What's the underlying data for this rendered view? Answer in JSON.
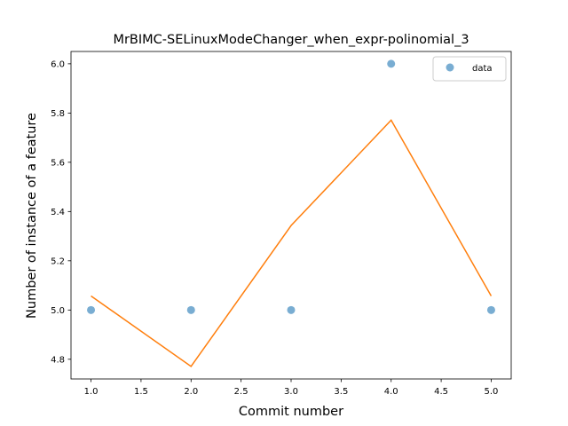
{
  "chart_data": {
    "type": "scatter",
    "title": "MrBIMC-SELinuxModeChanger_when_expr-polinomial_3",
    "xlabel": "Commit number",
    "ylabel": "Number of instance of a feature",
    "xlim": [
      0.8,
      5.2
    ],
    "ylim": [
      4.72,
      6.05
    ],
    "xticks": [
      1.0,
      1.5,
      2.0,
      2.5,
      3.0,
      3.5,
      4.0,
      4.5,
      5.0
    ],
    "yticks": [
      4.8,
      5.0,
      5.2,
      5.4,
      5.6,
      5.8,
      6.0
    ],
    "xtick_labels": [
      "1.0",
      "1.5",
      "2.0",
      "2.5",
      "3.0",
      "3.5",
      "4.0",
      "4.5",
      "5.0"
    ],
    "ytick_labels": [
      "4.8",
      "5.0",
      "5.2",
      "5.4",
      "5.6",
      "5.8",
      "6.0"
    ],
    "grid": false,
    "legend_position": "top-right",
    "series": [
      {
        "name": "data",
        "kind": "scatter",
        "color": "#1f77b4",
        "alpha": 0.6,
        "x": [
          1,
          2,
          3,
          4,
          5
        ],
        "y": [
          5.0,
          5.0,
          5.0,
          6.0,
          5.0
        ]
      },
      {
        "kind": "line",
        "color": "#ff7f0e",
        "x": [
          1,
          2,
          3,
          4,
          5
        ],
        "y": [
          5.057,
          4.771,
          5.343,
          5.771,
          5.057
        ]
      }
    ]
  }
}
